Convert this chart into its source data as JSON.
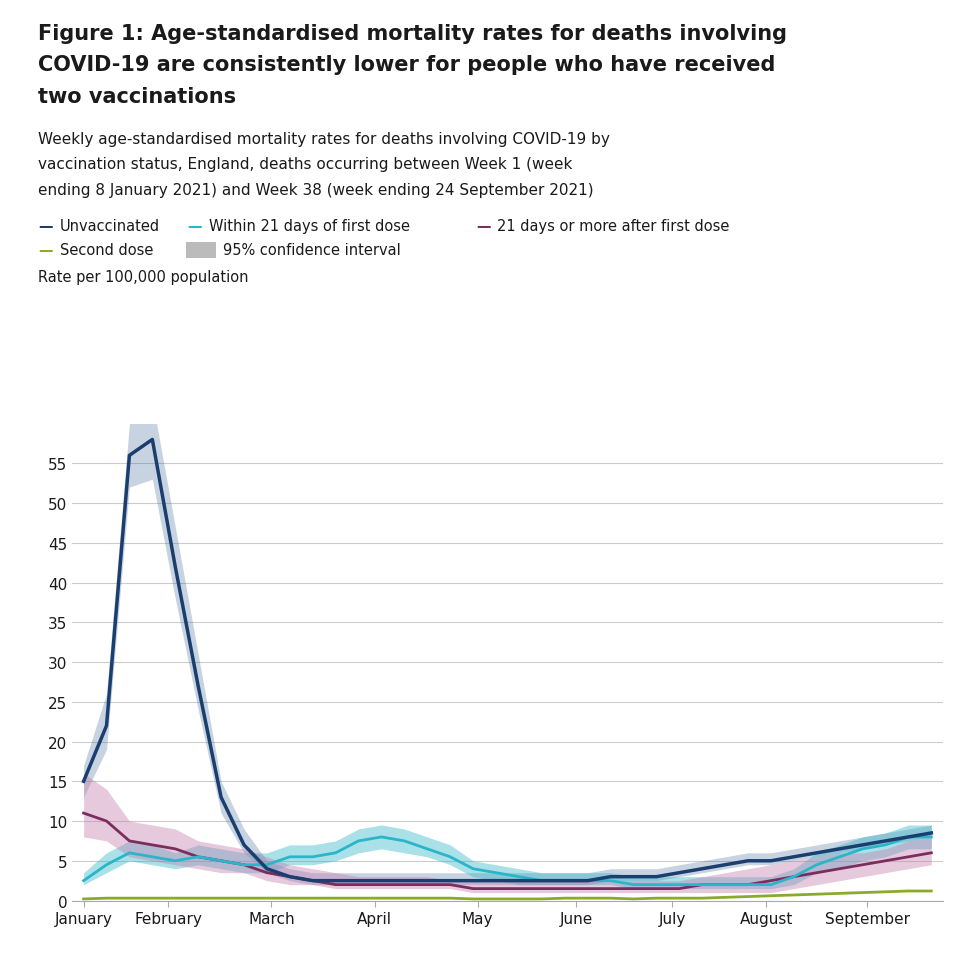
{
  "title_line1": "Figure 1: Age-standardised mortality rates for deaths involving",
  "title_line2": "COVID-19 are consistently lower for people who have received",
  "title_line3": "two vaccinations",
  "subtitle_line1": "Weekly age-standardised mortality rates for deaths involving COVID-19 by",
  "subtitle_line2": "vaccination status, England, deaths occurring between Week 1 (week",
  "subtitle_line3": "ending 8 January 2021) and Week 38 (week ending 24 September 2021)",
  "rate_label": "Rate per 100,000 population",
  "legend": {
    "unvaccinated_label": "Unvaccinated",
    "within21_label": "Within 21 days of first dose",
    "after21_label": "21 days or more after first dose",
    "second_label": "Second dose",
    "ci_label": "95% confidence interval"
  },
  "ylim": [
    0,
    60
  ],
  "yticks": [
    0,
    5,
    10,
    15,
    20,
    25,
    30,
    35,
    40,
    45,
    50,
    55
  ],
  "month_labels": [
    "January",
    "February",
    "March",
    "April",
    "May",
    "June",
    "July",
    "August",
    "September"
  ],
  "month_positions": [
    0,
    3.7,
    8.2,
    12.7,
    17.2,
    21.5,
    25.7,
    29.8,
    34.2
  ],
  "colors": {
    "unvaccinated": "#1a3f6f",
    "within21": "#2bb5c8",
    "after21": "#7b2d5e",
    "second": "#8aab2a",
    "ci_within21": "#2bb5c8",
    "ci_after21": "#c47aab",
    "ci_unvacc": "#4a6fa0",
    "ci_box": "#bbbbbb",
    "grid": "#cccccc",
    "spine": "#aaaaaa",
    "text_dark": "#1a1a1a",
    "text_mid": "#333333"
  },
  "unvaccinated": [
    15,
    22,
    56,
    58,
    42,
    27,
    13,
    7,
    4,
    3,
    2.5,
    2.5,
    2.5,
    2.5,
    2.5,
    2.5,
    2.5,
    2.5,
    2.5,
    2.5,
    2.5,
    2.5,
    2.5,
    3,
    3,
    3,
    3.5,
    4,
    4.5,
    5,
    5,
    5.5,
    6,
    6.5,
    7,
    7.5,
    8,
    8.5
  ],
  "unvacc_low": [
    13,
    19,
    52,
    53,
    38,
    24,
    11,
    6,
    3.5,
    2.5,
    2,
    2,
    2,
    2,
    2,
    2,
    2,
    2,
    2,
    2,
    2,
    2,
    2,
    2.5,
    2.5,
    2.5,
    3,
    3.5,
    4,
    4.5,
    4.5,
    5,
    5.5,
    6,
    6.5,
    7,
    7.5,
    8
  ],
  "unvacc_high": [
    17,
    26,
    60,
    63,
    47,
    31,
    15,
    9,
    5,
    4,
    3.5,
    3.5,
    3.5,
    3.5,
    3.5,
    3.5,
    3.5,
    3.5,
    3.5,
    3.5,
    3.5,
    3.5,
    3.5,
    4,
    4,
    4,
    4.5,
    5,
    5.5,
    6,
    6,
    6.5,
    7,
    7.5,
    8,
    8.5,
    9,
    9.5
  ],
  "within21": [
    2.5,
    4.5,
    6,
    5.5,
    5,
    5.5,
    5,
    4.5,
    4.5,
    5.5,
    5.5,
    6,
    7.5,
    8,
    7.5,
    6.5,
    5.5,
    4,
    3.5,
    3,
    2.5,
    2.5,
    2.5,
    2.5,
    2,
    2,
    2,
    2,
    2,
    2,
    2,
    3,
    4.5,
    5.5,
    6.5,
    7,
    8,
    8
  ],
  "within21_low": [
    2,
    3.5,
    5,
    4.5,
    4,
    4.5,
    4,
    3.5,
    3.5,
    4.5,
    4.5,
    5,
    6,
    6.5,
    6,
    5.5,
    4.5,
    3,
    2.5,
    2,
    2,
    2,
    2,
    2,
    1.5,
    1.5,
    1.5,
    1.5,
    1.5,
    1.5,
    1.5,
    2,
    3.5,
    4,
    5,
    5.5,
    6.5,
    6.5
  ],
  "within21_high": [
    3.5,
    6,
    7.5,
    7,
    6,
    7,
    6.5,
    6,
    6,
    7,
    7,
    7.5,
    9,
    9.5,
    9,
    8,
    7,
    5,
    4.5,
    4,
    3.5,
    3.5,
    3.5,
    3.5,
    3,
    3,
    3,
    3,
    3,
    3,
    3,
    4,
    6,
    7,
    8,
    8.5,
    9.5,
    9.5
  ],
  "after21": [
    11,
    10,
    7.5,
    7,
    6.5,
    5.5,
    5,
    4.5,
    3.5,
    3,
    2.5,
    2,
    2,
    2,
    2,
    2,
    2,
    1.5,
    1.5,
    1.5,
    1.5,
    1.5,
    1.5,
    1.5,
    1.5,
    1.5,
    1.5,
    2,
    2,
    2,
    2.5,
    3,
    3.5,
    4,
    4.5,
    5,
    5.5,
    6
  ],
  "after21_low": [
    8,
    7.5,
    5.5,
    5,
    4.5,
    4,
    3.5,
    3.5,
    2.5,
    2,
    2,
    1.5,
    1.5,
    1.5,
    1.5,
    1.5,
    1.5,
    1,
    1,
    1,
    1,
    1,
    1,
    1,
    1,
    1,
    1,
    1,
    1,
    1,
    1,
    1.5,
    2,
    2.5,
    3,
    3.5,
    4,
    4.5
  ],
  "after21_high": [
    16,
    14,
    10,
    9.5,
    9,
    7.5,
    7,
    6.5,
    5.5,
    4.5,
    4,
    3.5,
    3,
    3,
    3,
    3,
    2.5,
    2.5,
    2.5,
    2.5,
    2.5,
    2.5,
    2.5,
    2.5,
    2.5,
    2.5,
    2.5,
    3,
    3.5,
    4,
    4.5,
    5,
    5.5,
    6,
    6,
    6.5,
    7.5,
    8
  ],
  "second": [
    0.2,
    0.3,
    0.3,
    0.3,
    0.3,
    0.3,
    0.3,
    0.3,
    0.3,
    0.3,
    0.3,
    0.3,
    0.3,
    0.3,
    0.3,
    0.3,
    0.3,
    0.2,
    0.2,
    0.2,
    0.2,
    0.3,
    0.3,
    0.3,
    0.2,
    0.3,
    0.3,
    0.3,
    0.4,
    0.5,
    0.6,
    0.7,
    0.8,
    0.9,
    1.0,
    1.1,
    1.2,
    1.2
  ],
  "n_weeks": 38,
  "background_color": "#ffffff"
}
